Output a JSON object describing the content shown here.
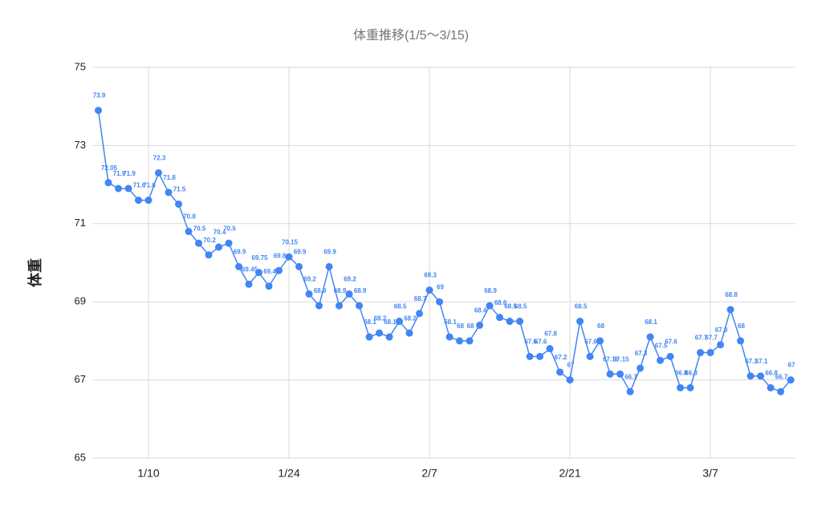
{
  "chart_data": {
    "type": "line",
    "title": "体重推移(1/5〜3/15)",
    "y_label": "体重",
    "x": [
      "1/5",
      "1/6",
      "1/7",
      "1/8",
      "1/9",
      "1/10",
      "1/11",
      "1/12",
      "1/13",
      "1/14",
      "1/15",
      "1/16",
      "1/17",
      "1/18",
      "1/19",
      "1/20",
      "1/21",
      "1/22",
      "1/23",
      "1/24",
      "1/25",
      "1/26",
      "1/27",
      "1/28",
      "1/29",
      "1/30",
      "1/31",
      "2/1",
      "2/2",
      "2/3",
      "2/4",
      "2/5",
      "2/6",
      "2/7",
      "2/8",
      "2/9",
      "2/10",
      "2/11",
      "2/12",
      "2/13",
      "2/14",
      "2/15",
      "2/16",
      "2/17",
      "2/18",
      "2/19",
      "2/20",
      "2/21",
      "2/22",
      "2/23",
      "2/24",
      "2/25",
      "2/26",
      "2/27",
      "2/28",
      "3/1",
      "3/2",
      "3/3",
      "3/4",
      "3/5",
      "3/6",
      "3/7",
      "3/8",
      "3/9",
      "3/10",
      "3/11",
      "3/12",
      "3/13",
      "3/14",
      "3/15"
    ],
    "series": [
      {
        "name": "体重",
        "color": "#4285f4",
        "values": [
          73.9,
          72.05,
          71.9,
          71.9,
          71.6,
          71.6,
          72.3,
          71.8,
          71.5,
          70.8,
          70.5,
          70.2,
          70.4,
          70.5,
          69.9,
          69.45,
          69.75,
          69.4,
          69.8,
          70.15,
          69.9,
          69.2,
          68.9,
          69.9,
          68.9,
          69.2,
          68.9,
          68.1,
          68.2,
          68.1,
          68.5,
          68.2,
          68.7,
          69.3,
          69,
          68.1,
          68,
          68,
          68.4,
          68.9,
          68.6,
          68.5,
          68.5,
          67.6,
          67.6,
          67.8,
          67.2,
          67,
          68.5,
          67.6,
          68,
          67.15,
          67.15,
          66.7,
          67.3,
          68.1,
          67.5,
          67.6,
          66.8,
          66.8,
          67.7,
          67.7,
          67.9,
          68.8,
          68,
          67.1,
          67.1,
          66.8,
          66.7,
          67
        ]
      }
    ],
    "xticks": [
      "1/10",
      "1/24",
      "2/7",
      "2/21",
      "3/7"
    ],
    "ylim": [
      65,
      75
    ],
    "yticks": [
      65,
      67,
      69,
      71,
      73,
      75
    ],
    "grid": true,
    "data_labels": true
  }
}
